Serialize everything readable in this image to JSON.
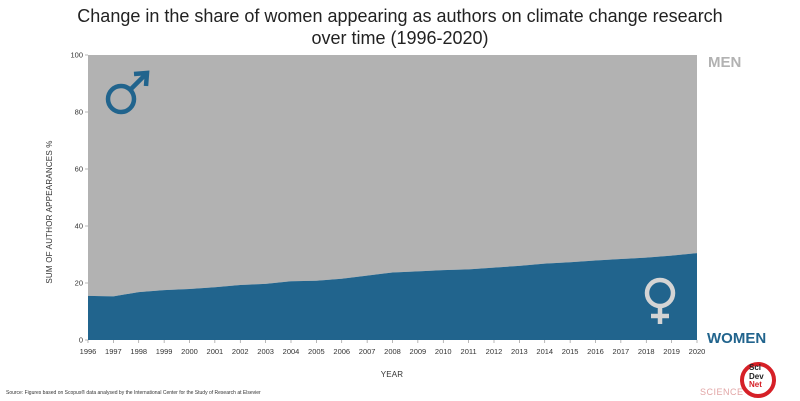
{
  "chart_data": {
    "type": "area",
    "title": "Change in the share of women appearing as authors on climate change research",
    "subtitle": "over time (1996-2020)",
    "xlabel": "YEAR",
    "ylabel": "SUM OF AUTHOR APPEARANCES %",
    "stacked": true,
    "ylim": [
      0,
      100
    ],
    "yticks": [
      0,
      20,
      40,
      60,
      80,
      100
    ],
    "x": [
      1996,
      1997,
      1998,
      1999,
      2000,
      2001,
      2002,
      2003,
      2004,
      2005,
      2006,
      2007,
      2008,
      2009,
      2010,
      2011,
      2012,
      2013,
      2014,
      2015,
      2016,
      2017,
      2018,
      2019,
      2020
    ],
    "series": [
      {
        "name": "WOMEN",
        "color": "#21648d",
        "values": [
          15.5,
          15.3,
          16.8,
          17.5,
          17.9,
          18.5,
          19.3,
          19.7,
          20.6,
          20.8,
          21.5,
          22.6,
          23.7,
          24.1,
          24.5,
          24.8,
          25.4,
          26.0,
          26.8,
          27.3,
          27.9,
          28.4,
          28.9,
          29.6,
          30.5
        ]
      },
      {
        "name": "MEN",
        "color": "#b2b2b2",
        "values": [
          84.5,
          84.7,
          83.2,
          82.5,
          82.1,
          81.5,
          80.7,
          80.3,
          79.4,
          79.2,
          78.5,
          77.4,
          76.3,
          75.9,
          75.5,
          75.2,
          74.6,
          74.0,
          73.2,
          72.7,
          72.1,
          71.6,
          71.1,
          70.4,
          69.5
        ]
      }
    ],
    "grid": false,
    "legend": "right"
  },
  "colors": {
    "women": "#21648d",
    "men": "#b2b2b2",
    "men_label": "#b2b2b2",
    "women_label": "#21648d",
    "male_symbol": "#21648d",
    "female_symbol": "#d4d4d4"
  },
  "icons": {
    "male": "male-symbol-icon",
    "female": "female-symbol-icon"
  },
  "footer": {
    "source": "Source: Figures based on Scopus® data analysed by the International Center for the Study of Research at Elsevier",
    "watermark": "SCIENCE",
    "logo_line1": "Sci",
    "logo_line2": "Dev",
    "logo_line3": "Net"
  }
}
